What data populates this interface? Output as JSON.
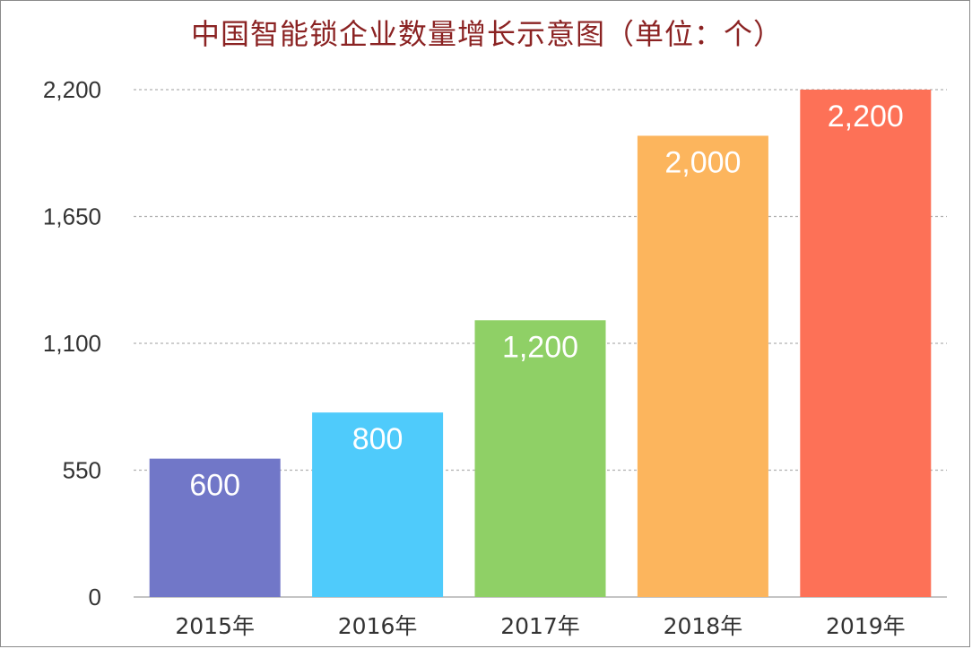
{
  "chart_data": {
    "type": "bar",
    "title": "中国智能锁企业数量增长示意图（单位：个）",
    "categories": [
      "2015年",
      "2016年",
      "2017年",
      "2018年",
      "2019年"
    ],
    "values": [
      600,
      800,
      1200,
      2000,
      2200
    ],
    "data_labels": [
      "600",
      "800",
      "1,200",
      "2,000",
      "2,200"
    ],
    "yticks": [
      0,
      550,
      1100,
      1650,
      2200
    ],
    "ytick_labels": [
      "0",
      "550",
      "1,100",
      "1,650",
      "2,200"
    ],
    "ylim": [
      0,
      2200
    ],
    "grid": true,
    "legend": "none",
    "colors": [
      "#7177c8",
      "#4fcbfb",
      "#8fd066",
      "#fcb55d",
      "#fd7157"
    ],
    "title_color": "#8b2323",
    "grid_color": "#b0b0b0",
    "axis_color": "#b0b0b0"
  }
}
